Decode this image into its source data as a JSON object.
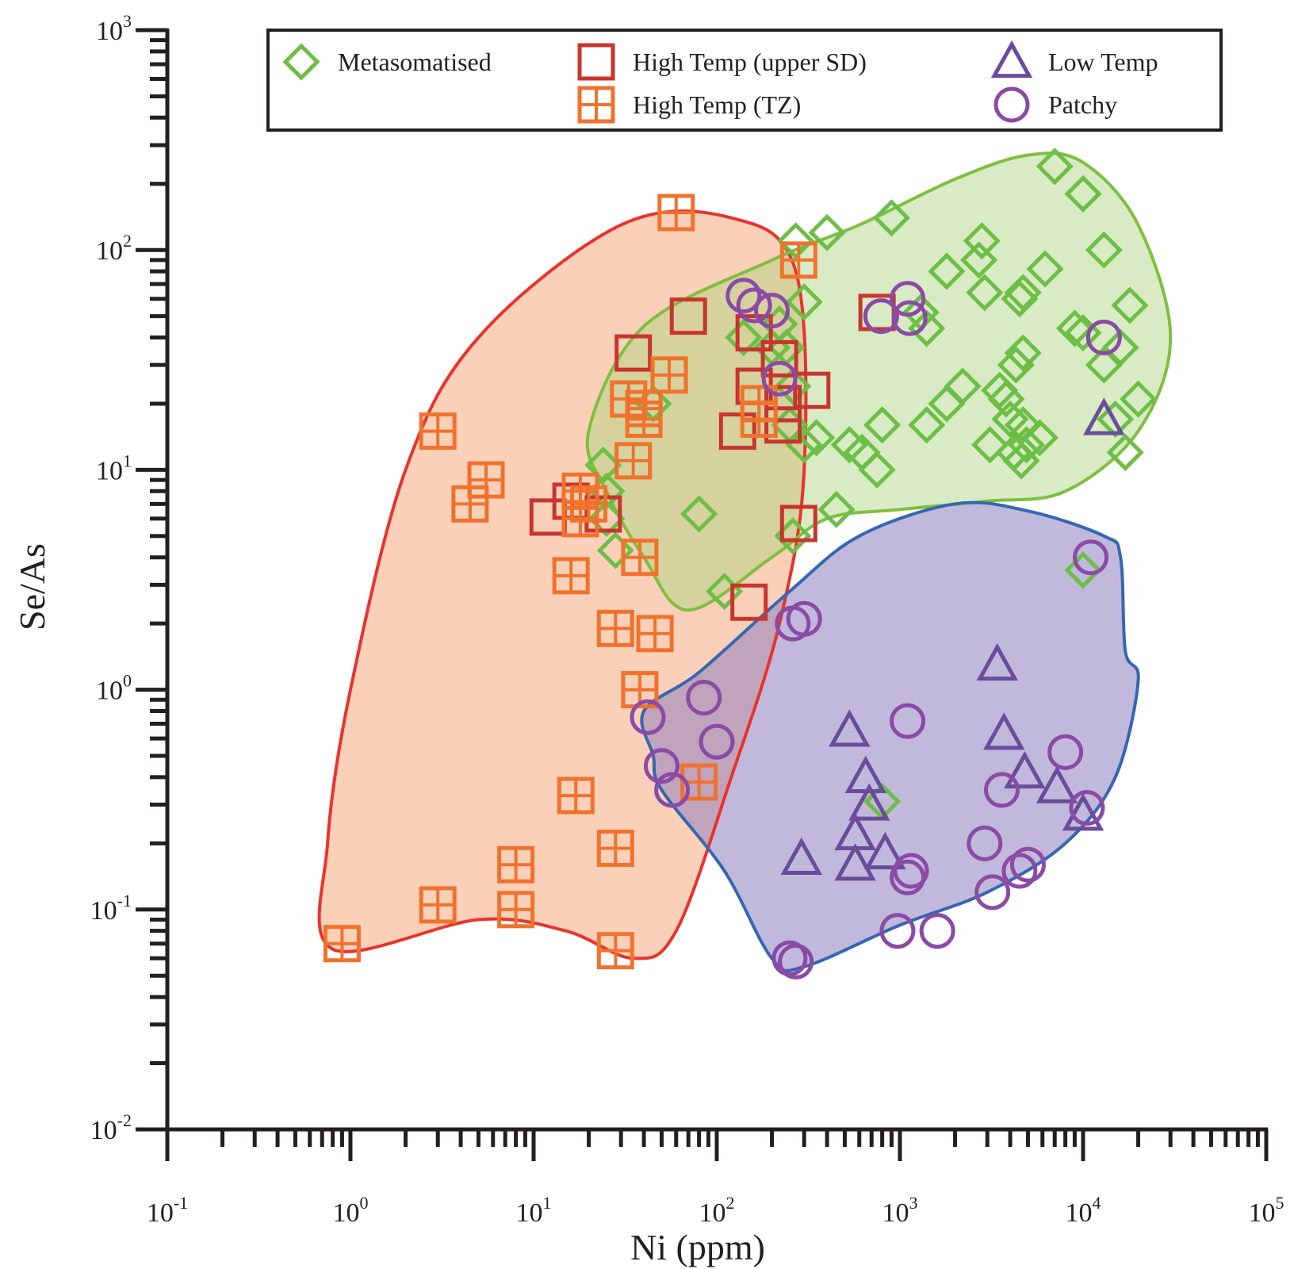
{
  "chart_data": {
    "type": "scatter",
    "xlabel": "Ni (ppm)",
    "ylabel": "Se/As",
    "xscale": "log",
    "yscale": "log",
    "xlim": [
      0.1,
      100000
    ],
    "ylim": [
      0.01,
      1000
    ],
    "x_ticks": [
      {
        "base": "10",
        "exp": "-1"
      },
      {
        "base": "10",
        "exp": "0"
      },
      {
        "base": "10",
        "exp": "1"
      },
      {
        "base": "10",
        "exp": "2"
      },
      {
        "base": "10",
        "exp": "3"
      },
      {
        "base": "10",
        "exp": "4"
      },
      {
        "base": "10",
        "exp": "5"
      }
    ],
    "y_ticks": [
      {
        "base": "10",
        "exp": "-2"
      },
      {
        "base": "10",
        "exp": "-1"
      },
      {
        "base": "10",
        "exp": "0"
      },
      {
        "base": "10",
        "exp": "1"
      },
      {
        "base": "10",
        "exp": "2"
      },
      {
        "base": "10",
        "exp": "3"
      }
    ],
    "legend_position": "top",
    "colors": {
      "metasomatised": "#6cbe45",
      "high_temp_upper_sd": "#c8352e",
      "high_temp_tz": "#f0722d",
      "low_temp": "#6a4c9c",
      "patchy": "#8a4aa6",
      "axis": "#231f20"
    },
    "regions": [
      {
        "id": "high-temp-field",
        "fill": "#f6b289",
        "stroke": "#e8332e",
        "opacity": 0.6,
        "points": [
          [
            0.8,
            0.066
          ],
          [
            5,
            0.09
          ],
          [
            15,
            0.08
          ],
          [
            35,
            0.06
          ],
          [
            60,
            0.08
          ],
          [
            120,
            0.4
          ],
          [
            220,
            2
          ],
          [
            300,
            10
          ],
          [
            270,
            80
          ],
          [
            120,
            140
          ],
          [
            30,
            130
          ],
          [
            5,
            40
          ],
          [
            2,
            10
          ],
          [
            1,
            1
          ],
          [
            0.75,
            0.2
          ]
        ]
      },
      {
        "id": "metasomatised-field",
        "fill": "#a8d27f",
        "stroke": "#7fbf3f",
        "opacity": 0.45,
        "points": [
          [
            25,
            8
          ],
          [
            20,
            15
          ],
          [
            40,
            45
          ],
          [
            200,
            90
          ],
          [
            600,
            130
          ],
          [
            2000,
            210
          ],
          [
            5000,
            270
          ],
          [
            10000,
            250
          ],
          [
            20000,
            130
          ],
          [
            30000,
            40
          ],
          [
            20000,
            15
          ],
          [
            8000,
            8
          ],
          [
            3000,
            7.2
          ],
          [
            1000,
            6.6
          ],
          [
            400,
            6
          ],
          [
            200,
            4
          ],
          [
            70,
            2.3
          ],
          [
            40,
            4
          ]
        ]
      },
      {
        "id": "low-temp-patchy-field",
        "fill": "#8e80bd",
        "stroke": "#3567b1",
        "opacity": 0.55,
        "points": [
          [
            45,
            0.5
          ],
          [
            40,
            0.8
          ],
          [
            80,
            1.2
          ],
          [
            250,
            2.8
          ],
          [
            600,
            5
          ],
          [
            2000,
            7
          ],
          [
            5000,
            6.5
          ],
          [
            13000,
            5
          ],
          [
            16000,
            4
          ],
          [
            17000,
            1.5
          ],
          [
            20000,
            1.1
          ],
          [
            15000,
            0.4
          ],
          [
            8000,
            0.2
          ],
          [
            3000,
            0.12
          ],
          [
            1000,
            0.085
          ],
          [
            300,
            0.055
          ],
          [
            200,
            0.06
          ],
          [
            110,
            0.15
          ],
          [
            50,
            0.35
          ]
        ]
      }
    ],
    "series": [
      {
        "name": "Metasomatised",
        "marker": "diamond",
        "points": [
          [
            7000,
            240
          ],
          [
            10000,
            180
          ],
          [
            13000,
            100
          ],
          [
            18000,
            56
          ],
          [
            16000,
            36
          ],
          [
            13000,
            30
          ],
          [
            15000,
            17
          ],
          [
            20000,
            21
          ],
          [
            17000,
            12
          ],
          [
            900,
            140
          ],
          [
            400,
            120
          ],
          [
            270,
            110
          ],
          [
            2800,
            110
          ],
          [
            2700,
            90
          ],
          [
            1800,
            80
          ],
          [
            6200,
            82
          ],
          [
            2900,
            64
          ],
          [
            4500,
            60
          ],
          [
            4700,
            64
          ],
          [
            1300,
            52
          ],
          [
            1400,
            44
          ],
          [
            9000,
            44
          ],
          [
            10000,
            42
          ],
          [
            4700,
            34
          ],
          [
            4300,
            30
          ],
          [
            2200,
            24
          ],
          [
            3800,
            21
          ],
          [
            3500,
            23
          ],
          [
            1800,
            20
          ],
          [
            4000,
            17
          ],
          [
            4700,
            16
          ],
          [
            4900,
            13
          ],
          [
            4200,
            12
          ],
          [
            3100,
            13
          ],
          [
            5800,
            14
          ],
          [
            4600,
            11
          ],
          [
            800,
            16
          ],
          [
            1400,
            16
          ],
          [
            750,
            10
          ],
          [
            530,
            13
          ],
          [
            620,
            12
          ],
          [
            350,
            14
          ],
          [
            300,
            13
          ],
          [
            250,
            16
          ],
          [
            200,
            36
          ],
          [
            140,
            40
          ],
          [
            300,
            58
          ],
          [
            240,
            36
          ],
          [
            220,
            46
          ],
          [
            260,
            24
          ],
          [
            260,
            5
          ],
          [
            450,
            6.6
          ],
          [
            80,
            6.3
          ],
          [
            110,
            2.8
          ],
          [
            28,
            4.3
          ],
          [
            24,
            10.5
          ],
          [
            25,
            8
          ],
          [
            25,
            6
          ],
          [
            45,
            20
          ],
          [
            10000,
            3.5
          ],
          [
            800,
            0.31
          ]
        ]
      },
      {
        "name": "High Temp (upper SD)",
        "marker": "square",
        "points": [
          [
            70,
            50
          ],
          [
            35,
            34
          ],
          [
            160,
            42
          ],
          [
            220,
            32
          ],
          [
            160,
            24
          ],
          [
            330,
            23
          ],
          [
            230,
            20
          ],
          [
            230,
            16
          ],
          [
            130,
            15
          ],
          [
            750,
            52
          ],
          [
            280,
            5.7
          ],
          [
            150,
            2.5
          ],
          [
            12,
            6.1
          ],
          [
            16,
            7.2
          ],
          [
            24,
            6.3
          ]
        ]
      },
      {
        "name": "High Temp (TZ)",
        "marker": "square-plus",
        "points": [
          [
            60,
            148
          ],
          [
            280,
            90
          ],
          [
            55,
            27
          ],
          [
            33,
            21
          ],
          [
            40,
            19
          ],
          [
            40,
            17
          ],
          [
            170,
            20
          ],
          [
            170,
            17
          ],
          [
            35,
            11
          ],
          [
            3,
            15
          ],
          [
            4.5,
            7
          ],
          [
            5.5,
            9
          ],
          [
            18,
            8
          ],
          [
            20,
            7
          ],
          [
            18,
            6
          ],
          [
            16,
            3.3
          ],
          [
            38,
            4
          ],
          [
            28,
            1.9
          ],
          [
            46,
            1.8
          ],
          [
            38,
            1
          ],
          [
            80,
            0.38
          ],
          [
            17,
            0.33
          ],
          [
            28,
            0.19
          ],
          [
            8,
            0.16
          ],
          [
            3,
            0.105
          ],
          [
            8,
            0.1
          ],
          [
            0.9,
            0.07
          ],
          [
            28,
            0.065
          ]
        ]
      },
      {
        "name": "Low Temp",
        "marker": "triangle",
        "points": [
          [
            13000,
            17
          ],
          [
            3400,
            1.3
          ],
          [
            530,
            0.65
          ],
          [
            3700,
            0.63
          ],
          [
            650,
            0.4
          ],
          [
            4800,
            0.42
          ],
          [
            7200,
            0.36
          ],
          [
            680,
            0.3
          ],
          [
            10000,
            0.27
          ],
          [
            570,
            0.22
          ],
          [
            570,
            0.16
          ],
          [
            830,
            0.18
          ],
          [
            290,
            0.17
          ]
        ]
      },
      {
        "name": "Patchy",
        "marker": "circle",
        "points": [
          [
            140,
            62
          ],
          [
            160,
            56
          ],
          [
            200,
            53
          ],
          [
            790,
            50
          ],
          [
            1100,
            60
          ],
          [
            1130,
            49
          ],
          [
            13000,
            40
          ],
          [
            220,
            26
          ],
          [
            11000,
            4
          ],
          [
            260,
            2
          ],
          [
            300,
            2.1
          ],
          [
            42,
            0.75
          ],
          [
            85,
            0.92
          ],
          [
            100,
            0.58
          ],
          [
            50,
            0.45
          ],
          [
            57,
            0.35
          ],
          [
            1100,
            0.72
          ],
          [
            3600,
            0.35
          ],
          [
            8000,
            0.52
          ],
          [
            10500,
            0.29
          ],
          [
            2900,
            0.2
          ],
          [
            1100,
            0.14
          ],
          [
            1150,
            0.15
          ],
          [
            4500,
            0.15
          ],
          [
            5000,
            0.16
          ],
          [
            3200,
            0.12
          ],
          [
            970,
            0.08
          ],
          [
            1600,
            0.08
          ],
          [
            270,
            0.058
          ],
          [
            250,
            0.06
          ]
        ]
      }
    ]
  }
}
